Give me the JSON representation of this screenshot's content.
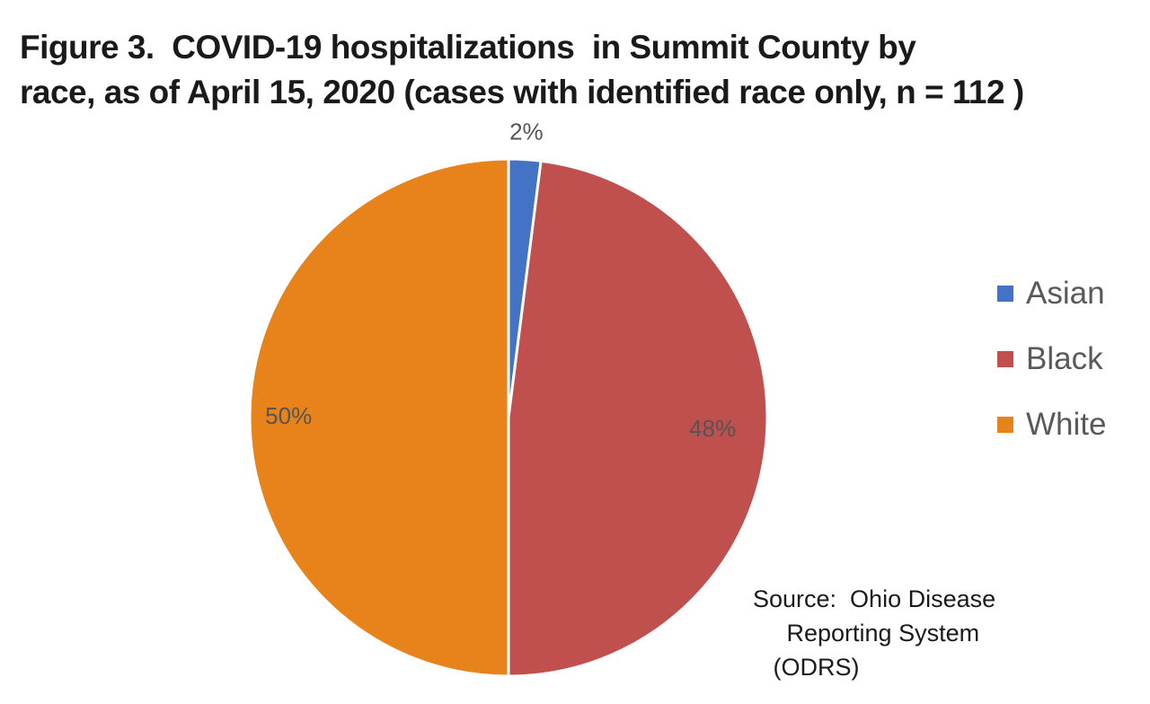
{
  "chart_data": {
    "type": "pie",
    "title_lines": [
      "Figure 3.  COVID-19 hospitalizations  in Summit County by",
      "race, as of April 15, 2020 (cases with identified race only, n = 112 )"
    ],
    "slices": [
      {
        "name": "Asian",
        "value": 2,
        "label": "2%",
        "color": "#4472C4"
      },
      {
        "name": "Black",
        "value": 48,
        "label": "48%",
        "color": "#C0504D"
      },
      {
        "name": "White",
        "value": 50,
        "label": "50%",
        "color": "#E8821A"
      }
    ],
    "legend_position": "right",
    "source_lines": [
      "Source:  Ohio Disease",
      "     Reporting System",
      "   (ODRS)"
    ]
  }
}
